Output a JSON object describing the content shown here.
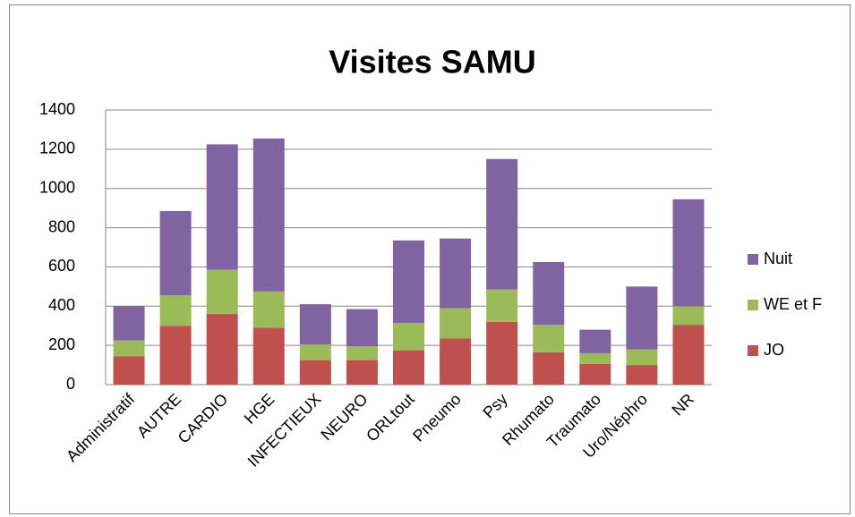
{
  "chart_data": {
    "type": "stacked_bar",
    "title": "Visites SAMU",
    "categories": [
      "Administratif",
      "AUTRE",
      "CARDIO",
      "HGE",
      "INFECTIEUX",
      "NEURO",
      "ORLtout",
      "Pneumo",
      "Psy",
      "Rhumato",
      "Traumato",
      "Uro/Néphro",
      "NR"
    ],
    "series": [
      {
        "name": "JO",
        "color": "#c0504d",
        "values": [
          145,
          300,
          360,
          290,
          125,
          125,
          175,
          235,
          320,
          165,
          105,
          100,
          305
        ]
      },
      {
        "name": "WE et F",
        "color": "#9bbb59",
        "values": [
          80,
          155,
          225,
          185,
          80,
          70,
          140,
          155,
          165,
          140,
          55,
          80,
          95
        ]
      },
      {
        "name": "Nuit",
        "color": "#8064a2",
        "values": [
          175,
          430,
          640,
          780,
          205,
          190,
          420,
          355,
          665,
          320,
          120,
          320,
          545
        ]
      }
    ],
    "ylim": [
      0,
      1400
    ],
    "yticks": [
      0,
      200,
      400,
      600,
      800,
      1000,
      1200,
      1400
    ],
    "grid": true,
    "legend": "right"
  }
}
